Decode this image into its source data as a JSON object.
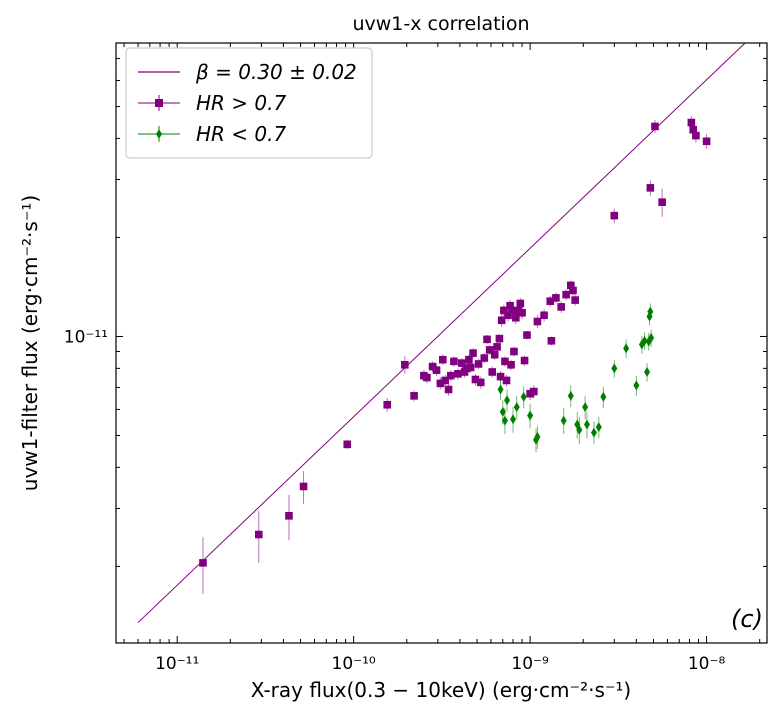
{
  "chart_data": {
    "type": "scatter",
    "title": "uvw1-x correlation",
    "xlabel": "X-ray flux(0.3 − 10keV) (erg·cm⁻²·s⁻¹)",
    "ylabel": "uvw1-filter flux (erg·cm⁻²·s⁻¹)",
    "x_scale": "log",
    "y_scale": "log",
    "xlim": [
      4.5e-12,
      2.2e-08
    ],
    "ylim": [
      1.17e-12,
      7.8e-11
    ],
    "x_ticks": [
      {
        "value": 1e-11,
        "label": "10⁻¹¹"
      },
      {
        "value": 1e-10,
        "label": "10⁻¹⁰"
      },
      {
        "value": 1e-09,
        "label": "10⁻⁹"
      },
      {
        "value": 1e-08,
        "label": "10⁻⁸"
      }
    ],
    "y_ticks": [
      {
        "value": 1e-11,
        "label": "10⁻¹¹"
      }
    ],
    "panel_label": "(c)",
    "panel_label_color": "#ff0000",
    "legend_position": "top-left",
    "fit_line": {
      "name": "β = 0.30 ± 0.02",
      "color": "#800080",
      "x": [
        6e-12,
        2e-08
      ],
      "y": [
        1.35e-12,
        8.6e-11
      ]
    },
    "series": [
      {
        "name": "HR > 0.7",
        "color": "#800080",
        "marker": "square",
        "points": [
          [
            1.4e-11,
            2.05e-12,
            4e-13
          ],
          [
            2.9e-11,
            2.5e-12,
            4.5e-13
          ],
          [
            4.3e-11,
            2.85e-12,
            4.5e-13
          ],
          [
            5.2e-11,
            3.5e-12,
            4e-13
          ],
          [
            9.2e-11,
            4.7e-12,
            1.5e-13
          ],
          [
            1.55e-10,
            6.2e-12,
            3e-13
          ],
          [
            1.95e-10,
            8.2e-12,
            5e-13
          ],
          [
            2.2e-10,
            6.6e-12,
            2.5e-13
          ],
          [
            2.5e-10,
            7.6e-12,
            3e-13
          ],
          [
            2.6e-10,
            7.5e-12,
            3e-13
          ],
          [
            2.8e-10,
            8.1e-12,
            3e-13
          ],
          [
            2.95e-10,
            7.9e-12,
            3e-13
          ],
          [
            3.1e-10,
            7.2e-12,
            3e-13
          ],
          [
            3.2e-10,
            8.5e-12,
            3e-13
          ],
          [
            3.3e-10,
            7.35e-12,
            3e-13
          ],
          [
            3.45e-10,
            6.9e-12,
            3e-13
          ],
          [
            3.55e-10,
            7.6e-12,
            3e-13
          ],
          [
            3.7e-10,
            8.4e-12,
            3e-13
          ],
          [
            3.9e-10,
            7.7e-12,
            3e-13
          ],
          [
            4.1e-10,
            8.3e-12,
            3e-13
          ],
          [
            4.25e-10,
            7.8e-12,
            3e-13
          ],
          [
            4.35e-10,
            8e-12,
            3e-13
          ],
          [
            4.5e-10,
            8.5e-12,
            3e-13
          ],
          [
            4.6e-10,
            8.05e-12,
            3e-13
          ],
          [
            4.75e-10,
            8.9e-12,
            3e-13
          ],
          [
            4.9e-10,
            7.4e-12,
            3e-13
          ],
          [
            5.1e-10,
            8.25e-12,
            3e-13
          ],
          [
            5.25e-10,
            7.25e-12,
            3e-13
          ],
          [
            5.5e-10,
            8.6e-12,
            3e-13
          ],
          [
            5.7e-10,
            9.8e-12,
            3e-13
          ],
          [
            5.9e-10,
            9.1e-12,
            3e-13
          ],
          [
            6.1e-10,
            7.8e-12,
            3e-13
          ],
          [
            6.3e-10,
            8.8e-12,
            3e-13
          ],
          [
            6.5e-10,
            9.3e-12,
            3e-13
          ],
          [
            6.7e-10,
            9.85e-12,
            3e-13
          ],
          [
            6.8e-10,
            7.55e-12,
            3e-13
          ],
          [
            6.9e-10,
            1.12e-11,
            5e-13
          ],
          [
            7.1e-10,
            1.2e-11,
            5e-13
          ],
          [
            7.2e-10,
            8.4e-12,
            3e-13
          ],
          [
            7.35e-10,
            7.35e-12,
            3e-13
          ],
          [
            7.5e-10,
            1.16e-11,
            5e-13
          ],
          [
            7.7e-10,
            1.24e-11,
            5e-13
          ],
          [
            7.8e-10,
            8.2e-12,
            3e-13
          ],
          [
            7.9e-10,
            1.2e-11,
            5e-13
          ],
          [
            8.1e-10,
            9e-12,
            3e-13
          ],
          [
            8.3e-10,
            1.14e-11,
            5e-13
          ],
          [
            8.6e-10,
            1.2e-11,
            5e-13
          ],
          [
            8.8e-10,
            1.26e-11,
            5e-13
          ],
          [
            9e-10,
            1.18e-11,
            5e-13
          ],
          [
            9.3e-10,
            8.45e-12,
            3e-13
          ],
          [
            9.6e-10,
            1.01e-11,
            3e-13
          ],
          [
            1e-09,
            6.7e-12,
            3e-13
          ],
          [
            1.05e-09,
            6.8e-12,
            3e-13
          ],
          [
            1.1e-09,
            1.11e-11,
            5e-13
          ],
          [
            1.2e-09,
            1.16e-11,
            5e-13
          ],
          [
            1.3e-09,
            1.28e-11,
            5e-13
          ],
          [
            1.32e-09,
            9.7e-12,
            3e-13
          ],
          [
            1.4e-09,
            1.31e-11,
            5e-13
          ],
          [
            1.5e-09,
            1.23e-11,
            5e-13
          ],
          [
            1.6e-09,
            1.34e-11,
            5e-13
          ],
          [
            1.7e-09,
            1.43e-11,
            5e-13
          ],
          [
            1.75e-09,
            1.38e-11,
            5e-13
          ],
          [
            1.8e-09,
            1.29e-11,
            5e-13
          ],
          [
            3e-09,
            2.33e-11,
            1.2e-12
          ],
          [
            4.8e-09,
            2.83e-11,
            1.5e-12
          ],
          [
            5.1e-09,
            4.35e-11,
            2e-12
          ],
          [
            5.6e-09,
            2.56e-11,
            2.5e-12
          ],
          [
            8.2e-09,
            4.47e-11,
            2e-12
          ],
          [
            8.4e-09,
            4.25e-11,
            2e-12
          ],
          [
            8.7e-09,
            4.08e-11,
            2e-12
          ],
          [
            1e-08,
            3.92e-11,
            2e-12
          ]
        ]
      },
      {
        "name": "HR < 0.7",
        "color": "#008000",
        "marker": "diamond",
        "points": [
          [
            6.8e-10,
            6.9e-12,
            5e-13
          ],
          [
            7e-10,
            5.9e-12,
            5e-13
          ],
          [
            7.2e-10,
            5.55e-12,
            5e-13
          ],
          [
            7.4e-10,
            6.4e-12,
            5e-13
          ],
          [
            8e-10,
            5.6e-12,
            5e-13
          ],
          [
            8.4e-10,
            6.1e-12,
            5e-13
          ],
          [
            9.2e-10,
            6.55e-12,
            5e-13
          ],
          [
            1e-09,
            5.75e-12,
            5e-13
          ],
          [
            1.08e-09,
            4.85e-12,
            4e-13
          ],
          [
            1.1e-09,
            4.95e-12,
            4e-13
          ],
          [
            1.55e-09,
            5.55e-12,
            5e-13
          ],
          [
            1.7e-09,
            6.6e-12,
            5e-13
          ],
          [
            1.85e-09,
            5.4e-12,
            5e-13
          ],
          [
            1.9e-09,
            5.2e-12,
            5e-13
          ],
          [
            2.05e-09,
            6.1e-12,
            5e-13
          ],
          [
            2.1e-09,
            5.4e-12,
            5e-13
          ],
          [
            2.3e-09,
            5.1e-12,
            4e-13
          ],
          [
            2.45e-09,
            5.3e-12,
            4e-13
          ],
          [
            2.6e-09,
            6.55e-12,
            5e-13
          ],
          [
            3e-09,
            8e-12,
            5e-13
          ],
          [
            3.5e-09,
            9.2e-12,
            6e-13
          ],
          [
            4e-09,
            7.1e-12,
            5e-13
          ],
          [
            4.3e-09,
            9.45e-12,
            6e-13
          ],
          [
            4.45e-09,
            9.7e-12,
            6e-13
          ],
          [
            4.6e-09,
            7.8e-12,
            5e-13
          ],
          [
            4.7e-09,
            9.65e-12,
            6e-13
          ],
          [
            4.75e-09,
            1.15e-11,
            7e-13
          ],
          [
            4.8e-09,
            1.19e-11,
            7e-13
          ],
          [
            4.85e-09,
            9.9e-12,
            6e-13
          ]
        ]
      }
    ]
  }
}
